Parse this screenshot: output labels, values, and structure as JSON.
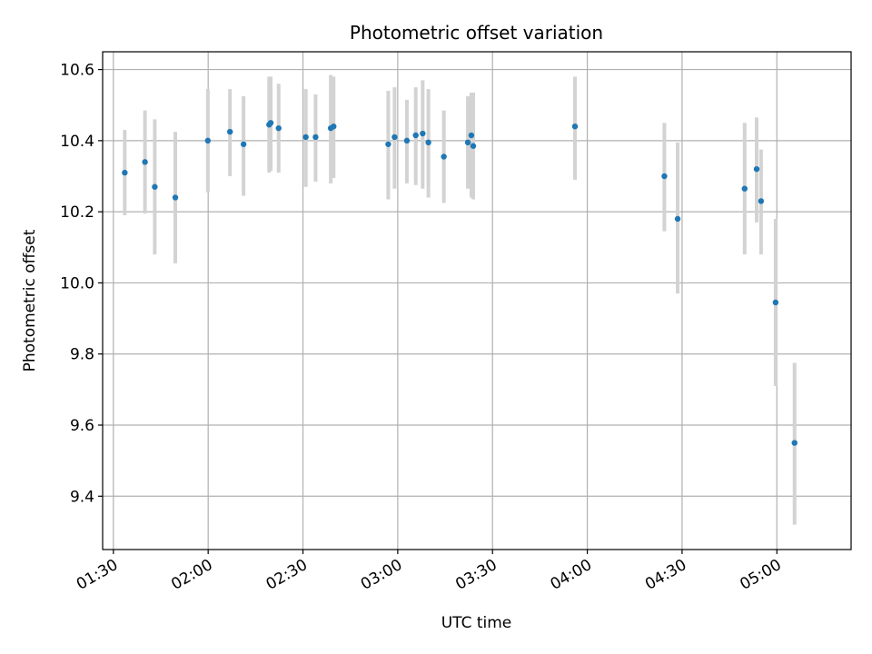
{
  "chart_data": {
    "type": "scatter",
    "title": "Photometric offset variation",
    "xlabel": "UTC time",
    "ylabel": "Photometric offset",
    "x_unit": "minutes since 00:00 UTC",
    "xlim": [
      86.6,
      323.5
    ],
    "ylim": [
      9.25,
      10.65
    ],
    "grid": true,
    "x_ticks": [
      {
        "value": 90,
        "label": "01:30"
      },
      {
        "value": 120,
        "label": "02:00"
      },
      {
        "value": 150,
        "label": "02:30"
      },
      {
        "value": 180,
        "label": "03:00"
      },
      {
        "value": 210,
        "label": "03:30"
      },
      {
        "value": 240,
        "label": "04:00"
      },
      {
        "value": 270,
        "label": "04:30"
      },
      {
        "value": 300,
        "label": "05:00"
      }
    ],
    "y_ticks": [
      {
        "value": 9.4,
        "label": "9.4"
      },
      {
        "value": 9.6,
        "label": "9.6"
      },
      {
        "value": 9.8,
        "label": "9.8"
      },
      {
        "value": 10.0,
        "label": "10.0"
      },
      {
        "value": 10.2,
        "label": "10.2"
      },
      {
        "value": 10.4,
        "label": "10.4"
      },
      {
        "value": 10.6,
        "label": "10.6"
      }
    ],
    "marker_color": "#1f77b4",
    "errorbar_color": "#d3d3d3",
    "points": [
      {
        "x": 93.6,
        "y": 10.31,
        "lo": 10.19,
        "hi": 10.43
      },
      {
        "x": 100.0,
        "y": 10.34,
        "lo": 10.195,
        "hi": 10.485
      },
      {
        "x": 103.1,
        "y": 10.27,
        "lo": 10.08,
        "hi": 10.46
      },
      {
        "x": 109.6,
        "y": 10.24,
        "lo": 10.055,
        "hi": 10.425
      },
      {
        "x": 119.9,
        "y": 10.4,
        "lo": 10.255,
        "hi": 10.545
      },
      {
        "x": 126.9,
        "y": 10.425,
        "lo": 10.3,
        "hi": 10.545
      },
      {
        "x": 131.2,
        "y": 10.39,
        "lo": 10.245,
        "hi": 10.525
      },
      {
        "x": 139.3,
        "y": 10.445,
        "lo": 10.31,
        "hi": 10.58
      },
      {
        "x": 139.8,
        "y": 10.45,
        "lo": 10.315,
        "hi": 10.58
      },
      {
        "x": 142.3,
        "y": 10.435,
        "lo": 10.31,
        "hi": 10.56
      },
      {
        "x": 150.9,
        "y": 10.41,
        "lo": 10.27,
        "hi": 10.545
      },
      {
        "x": 154.0,
        "y": 10.41,
        "lo": 10.285,
        "hi": 10.53
      },
      {
        "x": 158.8,
        "y": 10.435,
        "lo": 10.28,
        "hi": 10.585
      },
      {
        "x": 159.7,
        "y": 10.44,
        "lo": 10.295,
        "hi": 10.58
      },
      {
        "x": 177.0,
        "y": 10.39,
        "lo": 10.235,
        "hi": 10.54
      },
      {
        "x": 179.0,
        "y": 10.41,
        "lo": 10.265,
        "hi": 10.55
      },
      {
        "x": 182.9,
        "y": 10.4,
        "lo": 10.28,
        "hi": 10.515
      },
      {
        "x": 185.7,
        "y": 10.415,
        "lo": 10.275,
        "hi": 10.55
      },
      {
        "x": 187.9,
        "y": 10.42,
        "lo": 10.265,
        "hi": 10.57
      },
      {
        "x": 189.7,
        "y": 10.395,
        "lo": 10.24,
        "hi": 10.545
      },
      {
        "x": 194.6,
        "y": 10.355,
        "lo": 10.225,
        "hi": 10.485
      },
      {
        "x": 202.2,
        "y": 10.395,
        "lo": 10.265,
        "hi": 10.525
      },
      {
        "x": 203.3,
        "y": 10.415,
        "lo": 10.24,
        "hi": 10.535
      },
      {
        "x": 203.9,
        "y": 10.385,
        "lo": 10.235,
        "hi": 10.535
      },
      {
        "x": 236.1,
        "y": 10.44,
        "lo": 10.29,
        "hi": 10.58
      },
      {
        "x": 264.4,
        "y": 10.3,
        "lo": 10.145,
        "hi": 10.45
      },
      {
        "x": 268.6,
        "y": 10.18,
        "lo": 9.97,
        "hi": 10.395
      },
      {
        "x": 289.8,
        "y": 10.265,
        "lo": 10.08,
        "hi": 10.45
      },
      {
        "x": 293.6,
        "y": 10.32,
        "lo": 10.17,
        "hi": 10.465
      },
      {
        "x": 295.0,
        "y": 10.23,
        "lo": 10.08,
        "hi": 10.375
      },
      {
        "x": 299.6,
        "y": 9.945,
        "lo": 9.71,
        "hi": 10.18
      },
      {
        "x": 305.6,
        "y": 9.55,
        "lo": 9.32,
        "hi": 9.775
      }
    ]
  }
}
